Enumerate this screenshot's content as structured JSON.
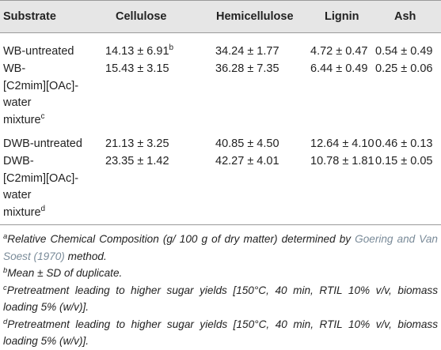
{
  "table": {
    "headers": {
      "substrate": "Substrate",
      "cellulose": "Cellulose",
      "hemicellulose": "Hemicellulose",
      "lignin": "Lignin",
      "ash": "Ash"
    },
    "rows": [
      {
        "substrate_lines": [
          "WB-untreated"
        ],
        "substrate_sup": "",
        "cellulose": "14.13 ± 6.91",
        "cellulose_sup": "b",
        "hemicellulose": "34.24 ± 1.77",
        "lignin": "4.72 ± 0.47",
        "ash": "0.54 ± 0.49"
      },
      {
        "substrate_lines": [
          "WB-",
          "[C2mim][OAc]-",
          "water",
          "mixture"
        ],
        "substrate_sup": "c",
        "cellulose": "15.43 ± 3.15",
        "cellulose_sup": "",
        "hemicellulose": "36.28 ± 7.35",
        "lignin": "6.44 ± 0.49",
        "ash": "0.25 ± 0.06"
      },
      {
        "substrate_lines": [
          "DWB-untreated"
        ],
        "substrate_sup": "",
        "cellulose": "21.13 ± 3.25",
        "cellulose_sup": "",
        "hemicellulose": "40.85 ± 4.50",
        "lignin": "12.64 ± 4.10",
        "ash": "0.46 ± 0.13"
      },
      {
        "substrate_lines": [
          "DWB-",
          "[C2mim][OAc]-",
          "water",
          "mixture"
        ],
        "substrate_sup": "d",
        "cellulose": "23.35 ± 1.42",
        "cellulose_sup": "",
        "hemicellulose": "42.27 ± 4.01",
        "lignin": "10.78 ± 1.81",
        "ash": "0.15 ± 0.05"
      }
    ]
  },
  "footnotes": {
    "a_mark": "a",
    "a_text_before": "Relative Chemical Composition (g/ 100 g of dry matter) determined by ",
    "a_ref": "Goering and Van Soest (1970)",
    "a_text_after": " method.",
    "b_mark": "b",
    "b_text": "Mean ± SD of duplicate.",
    "c_mark": "c",
    "c_text": "Pretreatment leading to higher sugar yields [150°C, 40 min, RTIL 10% v/v, biomass loading 5% (w/v)].",
    "d_mark": "d",
    "d_text": "Pretreatment leading to higher sugar yields [150°C, 40 min, RTIL 10% v/v, biomass loading 5% (w/v)]."
  }
}
